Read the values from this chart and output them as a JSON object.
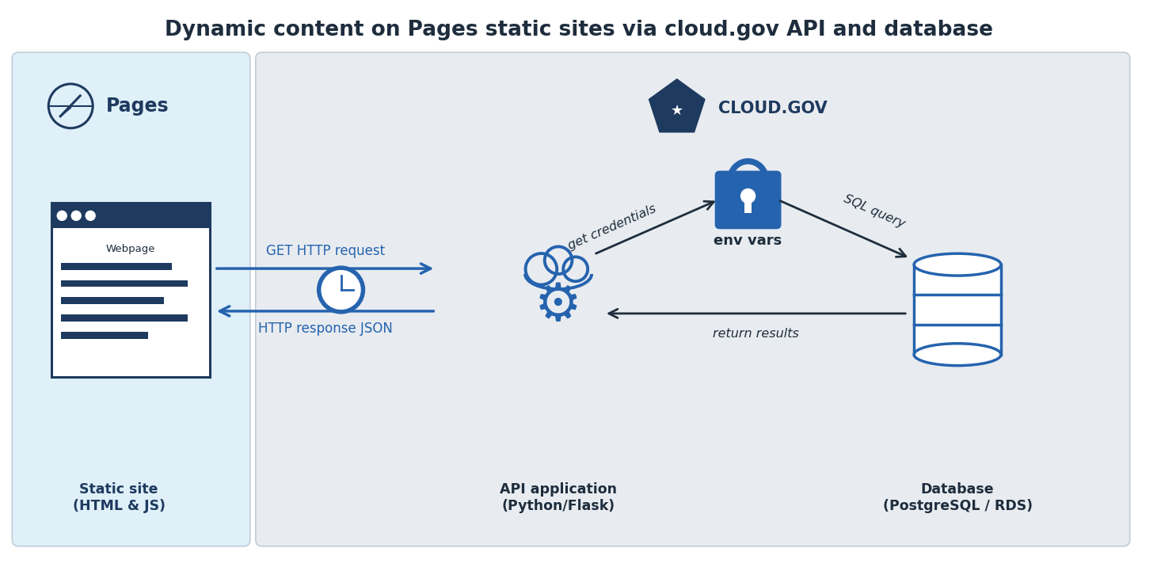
{
  "title": "Dynamic content on Pages static sites via cloud.gov API and database",
  "title_fontsize": 19,
  "bg_color": "#ffffff",
  "pages_box_color": "#dff0f9",
  "cloud_box_color": "#e8ecf0",
  "box_border_color": "#c0cdd8",
  "main_blue": "#1e3a5f",
  "arrow_blue": "#2563ae",
  "icon_blue": "#2563ae",
  "text_dark": "#1e2d3d",
  "text_label": "#333333",
  "pages_label": "Pages",
  "static_site_label": "Static site\n(HTML & JS)",
  "api_label": "API application\n(Python/Flask)",
  "db_label": "Database\n(PostgreSQL / RDS)",
  "cloud_label": "CLOUD.GOV",
  "get_http_label": "GET HTTP request",
  "http_response_label": "HTTP response JSON",
  "get_credentials_label": "get credentials",
  "sql_query_label": "SQL query",
  "return_results_label": "return results",
  "env_vars_label": "env vars",
  "webpage_label": "Webpage",
  "figw": 14.61,
  "figh": 7.21
}
